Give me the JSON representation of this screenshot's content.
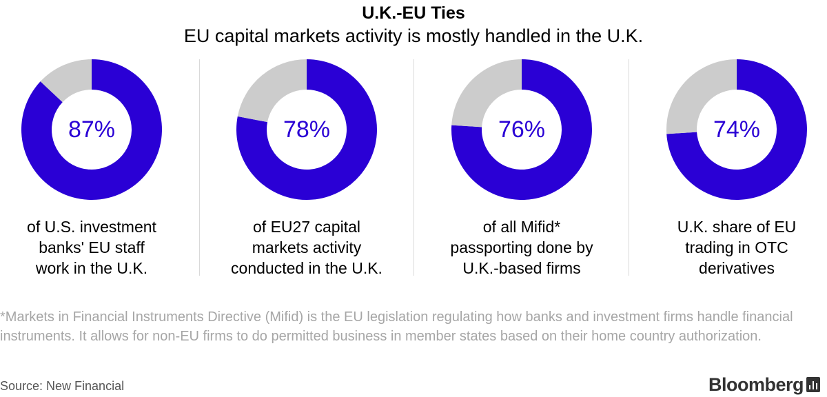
{
  "title": "U.K.-EU Ties",
  "subtitle": "EU capital markets activity is mostly handled in the U.K.",
  "colors": {
    "accent": "#2a00d5",
    "remainder": "#cccccc"
  },
  "chart_data": [
    {
      "type": "pie",
      "donut": true,
      "value": 87,
      "label": "87%",
      "caption": [
        "of U.S. investment",
        "banks' EU staff",
        "work in the U.K."
      ]
    },
    {
      "type": "pie",
      "donut": true,
      "value": 78,
      "label": "78%",
      "caption": [
        "of EU27 capital",
        "markets activity",
        "conducted in the U.K."
      ]
    },
    {
      "type": "pie",
      "donut": true,
      "value": 76,
      "label": "76%",
      "caption": [
        "of all Mifid*",
        "passporting done by",
        "U.K.-based firms"
      ]
    },
    {
      "type": "pie",
      "donut": true,
      "value": 74,
      "label": "74%",
      "caption": [
        "U.K. share of EU",
        "trading in OTC",
        "derivatives"
      ]
    }
  ],
  "footnote": "*Markets in Financial Instruments Directive (Mifid) is the EU legislation regulating how banks and investment firms handle financial instruments. It allows for non-EU firms to do permitted business in member states based on their home country authorization.",
  "source": "Source: New Financial",
  "brand": {
    "name": "Bloomberg",
    "icon": "bloomberg-chart-icon"
  }
}
